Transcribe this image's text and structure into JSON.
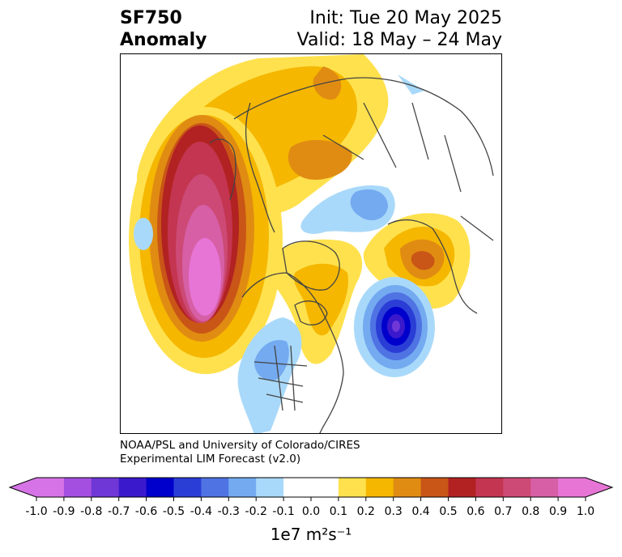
{
  "title": {
    "variable": "SF750\nAnomaly",
    "dates": "Init: Tue 20 May 2025\nValid: 18 May – 24 May"
  },
  "credit": "NOAA/PSL and University of Colorado/CIRES\nExperimental LIM Forecast (v2.0)",
  "colorbar": {
    "ticks": [
      "-1.0",
      "-0.9",
      "-0.8",
      "-0.7",
      "-0.6",
      "-0.5",
      "-0.4",
      "-0.3",
      "-0.2",
      "-0.1",
      "0.0",
      "0.1",
      "0.2",
      "0.3",
      "0.4",
      "0.5",
      "0.6",
      "0.7",
      "0.8",
      "0.9",
      "1.0"
    ],
    "colors": [
      "#d673e6",
      "#a44fe0",
      "#6e37d6",
      "#3a19cc",
      "#0000cc",
      "#2a3ed6",
      "#4f73e3",
      "#74aaf0",
      "#a9d9fa",
      "#ffffff",
      "#ffffff",
      "#ffe14d",
      "#f5b700",
      "#e08c12",
      "#c95517",
      "#b22222",
      "#c33550",
      "#cc4a75",
      "#d65fa6",
      "#e675d6"
    ],
    "under_color": "#d673e6",
    "over_color": "#e675d6",
    "unit": "1e7 m²s⁻¹"
  },
  "map": {
    "projection": "north-polar-stereographic",
    "features": {
      "land_outline_color": "#444444",
      "positive_anomaly_colors": [
        "#ffe14d",
        "#f5b700",
        "#e08c12",
        "#c95517",
        "#b22222",
        "#c33550",
        "#cc4a75",
        "#d65fa6",
        "#e675d6"
      ],
      "negative_anomaly_colors": [
        "#a9d9fa",
        "#74aaf0",
        "#4f73e3",
        "#2a3ed6",
        "#0000cc",
        "#3a19cc",
        "#6e37d6"
      ]
    }
  }
}
